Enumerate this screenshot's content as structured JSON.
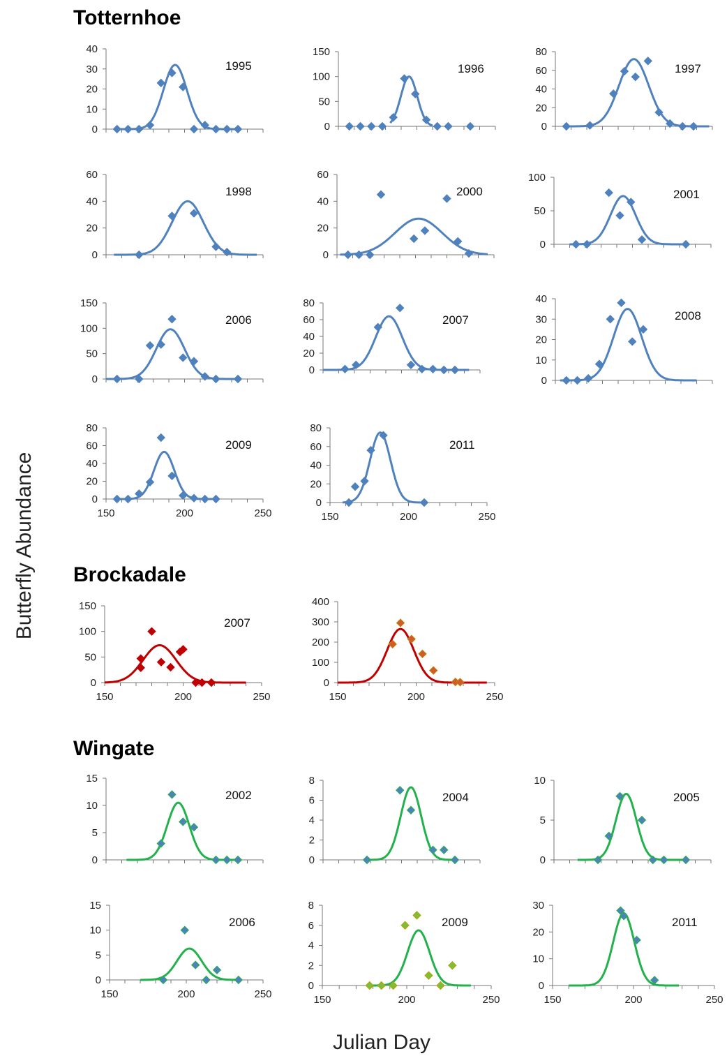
{
  "figure": {
    "ylabel": "Butterfly Abundance",
    "xlabel": "Julian Day",
    "sites": [
      "Totternhoe",
      "Brockadale",
      "Wingate"
    ]
  },
  "colors": {
    "Totternhoe": {
      "line": "#4f81bd",
      "marker": "#4f81bd",
      "edge": "#4f81bd"
    },
    "Brockadale2007": {
      "line": "#c00000",
      "marker": "#c00000",
      "edge": "#c00000"
    },
    "Brockadale": {
      "line": "#c00000",
      "marker": "#d45a2a",
      "edge": "#b8860b"
    },
    "Wingate": {
      "line": "#22b14c",
      "marker": "#4f81bd",
      "edge": "#22b14c"
    },
    "Wingate2009": {
      "line": "#22b14c",
      "marker": "#7bbf3a",
      "edge": "#b8a000"
    }
  },
  "chart_data": [
    {
      "type": "scatter",
      "site": "Totternhoe",
      "year": "1995",
      "xlim": [
        150,
        250
      ],
      "ylim": [
        0,
        40
      ],
      "yticks": [
        0,
        10,
        20,
        30,
        40
      ],
      "xticks": [],
      "xticklabels": [],
      "points": [
        [
          157,
          0
        ],
        [
          164,
          0
        ],
        [
          171,
          0
        ],
        [
          178,
          2
        ],
        [
          185,
          23
        ],
        [
          192,
          28
        ],
        [
          199,
          21
        ],
        [
          206,
          0
        ],
        [
          213,
          2
        ],
        [
          220,
          0
        ],
        [
          227,
          0
        ],
        [
          234,
          0
        ]
      ],
      "fit": {
        "amp": 32,
        "mu": 194,
        "sigma": 7.5,
        "x0": 157,
        "x1": 234
      }
    },
    {
      "type": "scatter",
      "site": "Totternhoe",
      "year": "1996",
      "xlim": [
        150,
        250
      ],
      "ylim": [
        0,
        150
      ],
      "yticks": [
        0,
        50,
        100,
        150
      ],
      "xticks": [],
      "xticklabels": [],
      "points": [
        [
          157,
          0
        ],
        [
          164,
          0
        ],
        [
          171,
          0
        ],
        [
          178,
          0
        ],
        [
          185,
          18
        ],
        [
          192,
          96
        ],
        [
          199,
          65
        ],
        [
          206,
          13
        ],
        [
          213,
          0
        ],
        [
          220,
          0
        ],
        [
          234,
          0
        ]
      ],
      "fit": {
        "amp": 100,
        "mu": 195,
        "sigma": 5.2,
        "x0": 183,
        "x1": 210
      }
    },
    {
      "type": "scatter",
      "site": "Totternhoe",
      "year": "1997",
      "xlim": [
        150,
        250
      ],
      "ylim": [
        0,
        80
      ],
      "yticks": [
        0,
        20,
        40,
        60,
        80
      ],
      "xticks": [],
      "xticklabels": [],
      "points": [
        [
          157,
          0
        ],
        [
          172,
          1
        ],
        [
          187,
          35
        ],
        [
          194,
          59
        ],
        [
          201,
          53
        ],
        [
          209,
          70
        ],
        [
          216,
          15
        ],
        [
          223,
          3
        ],
        [
          231,
          0
        ],
        [
          238,
          0
        ]
      ],
      "fit": {
        "amp": 72,
        "mu": 200,
        "sigma": 9.5,
        "x0": 155,
        "x1": 248
      }
    },
    {
      "type": "scatter",
      "site": "Totternhoe",
      "year": "1998",
      "xlim": [
        150,
        250
      ],
      "ylim": [
        0,
        60
      ],
      "yticks": [
        0,
        20,
        40,
        60
      ],
      "xticks": [],
      "xticklabels": [],
      "points": [
        [
          171,
          0
        ],
        [
          192,
          29
        ],
        [
          206,
          31
        ],
        [
          220,
          6
        ],
        [
          227,
          2
        ]
      ],
      "fit": {
        "amp": 40,
        "mu": 202,
        "sigma": 10,
        "x0": 155,
        "x1": 246
      }
    },
    {
      "type": "scatter",
      "site": "Totternhoe",
      "year": "2000",
      "xlim": [
        150,
        250
      ],
      "ylim": [
        0,
        60
      ],
      "yticks": [
        0,
        20,
        40,
        60
      ],
      "xticks": [],
      "xticklabels": [],
      "points": [
        [
          157,
          0
        ],
        [
          164,
          0
        ],
        [
          171,
          0
        ],
        [
          178,
          45
        ],
        [
          199,
          12
        ],
        [
          206,
          18
        ],
        [
          220,
          42
        ],
        [
          227,
          10
        ],
        [
          234,
          1
        ]
      ],
      "fit": {
        "amp": 27,
        "mu": 202,
        "sigma": 15,
        "x0": 152,
        "x1": 246
      }
    },
    {
      "type": "scatter",
      "site": "Totternhoe",
      "year": "2001",
      "xlim": [
        150,
        250
      ],
      "ylim": [
        0,
        100
      ],
      "yticks": [
        0,
        50,
        100
      ],
      "xticks": [],
      "xticklabels": [],
      "points": [
        [
          164,
          0
        ],
        [
          171,
          0
        ],
        [
          185,
          77
        ],
        [
          192,
          43
        ],
        [
          199,
          63
        ],
        [
          206,
          7
        ],
        [
          234,
          0
        ]
      ],
      "fit": {
        "amp": 72,
        "mu": 194,
        "sigma": 8,
        "x0": 160,
        "x1": 234
      }
    },
    {
      "type": "scatter",
      "site": "Totternhoe",
      "year": "2006",
      "xlim": [
        150,
        250
      ],
      "ylim": [
        0,
        150
      ],
      "yticks": [
        0,
        50,
        100,
        150
      ],
      "xticks": [],
      "xticklabels": [],
      "points": [
        [
          157,
          0
        ],
        [
          171,
          0
        ],
        [
          178,
          66
        ],
        [
          185,
          68
        ],
        [
          192,
          118
        ],
        [
          199,
          42
        ],
        [
          206,
          35
        ],
        [
          213,
          5
        ],
        [
          220,
          0
        ],
        [
          234,
          0
        ]
      ],
      "fit": {
        "amp": 98,
        "mu": 191,
        "sigma": 9,
        "x0": 150,
        "x1": 232
      }
    },
    {
      "type": "scatter",
      "site": "Totternhoe",
      "year": "2007",
      "xlim": [
        150,
        250
      ],
      "ylim": [
        0,
        80
      ],
      "yticks": [
        0,
        20,
        40,
        60,
        80
      ],
      "xticks": [],
      "xticklabels": [],
      "points": [
        [
          164,
          1
        ],
        [
          171,
          6
        ],
        [
          185,
          51
        ],
        [
          199,
          74
        ],
        [
          206,
          6
        ],
        [
          213,
          1
        ],
        [
          220,
          1
        ],
        [
          227,
          0
        ],
        [
          234,
          0
        ]
      ],
      "fit": {
        "amp": 64,
        "mu": 192,
        "sigma": 8.5,
        "x0": 150,
        "x1": 243
      }
    },
    {
      "type": "scatter",
      "site": "Totternhoe",
      "year": "2008",
      "xlim": [
        150,
        250
      ],
      "ylim": [
        0,
        40
      ],
      "yticks": [
        0,
        10,
        20,
        30,
        40
      ],
      "xticks": [],
      "xticklabels": [],
      "points": [
        [
          157,
          0
        ],
        [
          164,
          0
        ],
        [
          171,
          1
        ],
        [
          178,
          8
        ],
        [
          185,
          30
        ],
        [
          192,
          38
        ],
        [
          199,
          19
        ],
        [
          206,
          25
        ]
      ],
      "fit": {
        "amp": 35,
        "mu": 196,
        "sigma": 9,
        "x0": 153,
        "x1": 240
      }
    },
    {
      "type": "scatter",
      "site": "Totternhoe",
      "year": "2009",
      "xlim": [
        150,
        250
      ],
      "ylim": [
        0,
        80
      ],
      "yticks": [
        0,
        20,
        40,
        60,
        80
      ],
      "xticks": [
        150,
        200,
        250
      ],
      "xticklabels": [
        "150",
        "200",
        "250"
      ],
      "points": [
        [
          157,
          0
        ],
        [
          164,
          0
        ],
        [
          171,
          6
        ],
        [
          178,
          19
        ],
        [
          185,
          69
        ],
        [
          192,
          26
        ],
        [
          199,
          4
        ],
        [
          206,
          1
        ],
        [
          213,
          0
        ],
        [
          220,
          0
        ]
      ],
      "fit": {
        "amp": 53,
        "mu": 187,
        "sigma": 6.5,
        "x0": 155,
        "x1": 220
      }
    },
    {
      "type": "scatter",
      "site": "Totternhoe",
      "year": "2011",
      "xlim": [
        150,
        250
      ],
      "ylim": [
        0,
        80
      ],
      "yticks": [
        0,
        20,
        40,
        60,
        80
      ],
      "xticks": [
        150,
        200,
        250
      ],
      "xticklabels": [
        "150",
        "200",
        "250"
      ],
      "points": [
        [
          162,
          0
        ],
        [
          166,
          17
        ],
        [
          172,
          23
        ],
        [
          176,
          56
        ],
        [
          184,
          72
        ],
        [
          210,
          0
        ]
      ],
      "fit": {
        "amp": 75,
        "mu": 182,
        "sigma": 6.5,
        "x0": 158,
        "x1": 212
      }
    },
    {
      "type": "scatter",
      "site": "Brockadale",
      "year": "2007",
      "xlim": [
        150,
        250
      ],
      "ylim": [
        0,
        150
      ],
      "yticks": [
        0,
        50,
        100,
        150
      ],
      "xticks": [
        150,
        200,
        250
      ],
      "xticklabels": [
        "150",
        "200",
        "250"
      ],
      "points": [
        [
          173,
          47
        ],
        [
          173,
          29
        ],
        [
          180,
          100
        ],
        [
          186,
          40
        ],
        [
          192,
          30
        ],
        [
          198,
          60
        ],
        [
          200,
          65
        ],
        [
          208,
          0
        ],
        [
          212,
          0
        ],
        [
          218,
          0
        ]
      ],
      "fit": {
        "amp": 73,
        "mu": 185,
        "sigma": 10.5,
        "x0": 150,
        "x1": 240
      }
    },
    {
      "type": "scatter",
      "site": "Brockadale",
      "year": "",
      "xlim": [
        150,
        250
      ],
      "ylim": [
        0,
        400
      ],
      "yticks": [
        0,
        100,
        200,
        300,
        400
      ],
      "xticks": [
        150,
        200,
        250
      ],
      "xticklabels": [
        "150",
        "200",
        "250"
      ],
      "points": [
        [
          185,
          190
        ],
        [
          190,
          295
        ],
        [
          197,
          215
        ],
        [
          204,
          142
        ],
        [
          211,
          60
        ],
        [
          225,
          3
        ],
        [
          228,
          2
        ]
      ],
      "fit": {
        "amp": 265,
        "mu": 190,
        "sigma": 8.5,
        "x0": 150,
        "x1": 245
      }
    },
    {
      "type": "scatter",
      "site": "Wingate",
      "year": "2002",
      "xlim": [
        150,
        250
      ],
      "ylim": [
        0,
        15
      ],
      "yticks": [
        0,
        5,
        10,
        15
      ],
      "xticks": [],
      "xticklabels": [],
      "points": [
        [
          185,
          3
        ],
        [
          192,
          12
        ],
        [
          199,
          7
        ],
        [
          206,
          6
        ],
        [
          220,
          0
        ],
        [
          227,
          0
        ],
        [
          234,
          0
        ]
      ],
      "fit": {
        "amp": 10.5,
        "mu": 196,
        "sigma": 7,
        "x0": 163,
        "x1": 233
      }
    },
    {
      "type": "scatter",
      "site": "Wingate",
      "year": "2004",
      "xlim": [
        150,
        250
      ],
      "ylim": [
        0,
        8
      ],
      "yticks": [
        0,
        2,
        4,
        6,
        8
      ],
      "xticks": [],
      "xticklabels": [],
      "points": [
        [
          178,
          0
        ],
        [
          199,
          7
        ],
        [
          206,
          5
        ],
        [
          220,
          1
        ],
        [
          227,
          1
        ],
        [
          234,
          0
        ]
      ],
      "fit": {
        "amp": 7.3,
        "mu": 206,
        "sigma": 6.5,
        "x0": 178,
        "x1": 236
      }
    },
    {
      "type": "scatter",
      "site": "Wingate",
      "year": "2005",
      "xlim": [
        150,
        250
      ],
      "ylim": [
        0,
        10
      ],
      "yticks": [
        0,
        5,
        10
      ],
      "xticks": [],
      "xticklabels": [],
      "points": [
        [
          178,
          0
        ],
        [
          185,
          3
        ],
        [
          192,
          8
        ],
        [
          206,
          5
        ],
        [
          213,
          0
        ],
        [
          220,
          0
        ],
        [
          234,
          0
        ]
      ],
      "fit": {
        "amp": 8.3,
        "mu": 196,
        "sigma": 6.5,
        "x0": 165,
        "x1": 232
      }
    },
    {
      "type": "scatter",
      "site": "Wingate",
      "year": "2006",
      "xlim": [
        150,
        250
      ],
      "ylim": [
        0,
        15
      ],
      "yticks": [
        0,
        5,
        10,
        15
      ],
      "xticks": [
        150,
        200,
        250
      ],
      "xticklabels": [
        "150",
        "200",
        "250"
      ],
      "points": [
        [
          185,
          0
        ],
        [
          199,
          10
        ],
        [
          206,
          3
        ],
        [
          213,
          0
        ],
        [
          220,
          2
        ],
        [
          234,
          0
        ]
      ],
      "fit": {
        "amp": 6.3,
        "mu": 202,
        "sigma": 8,
        "x0": 170,
        "x1": 236
      }
    },
    {
      "type": "scatter",
      "site": "Wingate",
      "year": "2009",
      "xlim": [
        150,
        250
      ],
      "ylim": [
        0,
        8
      ],
      "yticks": [
        0,
        2,
        4,
        6,
        8
      ],
      "xticks": [
        150,
        200,
        250
      ],
      "xticklabels": [
        "150",
        "200",
        "250"
      ],
      "points": [
        [
          178,
          0
        ],
        [
          185,
          0
        ],
        [
          192,
          0
        ],
        [
          199,
          6
        ],
        [
          206,
          7
        ],
        [
          213,
          1
        ],
        [
          220,
          0
        ],
        [
          227,
          2
        ]
      ],
      "fit": {
        "amp": 5.5,
        "mu": 207,
        "sigma": 6.5,
        "x0": 178,
        "x1": 238
      }
    },
    {
      "type": "scatter",
      "site": "Wingate",
      "year": "2011",
      "xlim": [
        150,
        250
      ],
      "ylim": [
        0,
        30
      ],
      "yticks": [
        0,
        10,
        20,
        30
      ],
      "xticks": [
        150,
        200,
        250
      ],
      "xticklabels": [
        "150",
        "200",
        "250"
      ],
      "points": [
        [
          192,
          28
        ],
        [
          194,
          26
        ],
        [
          202,
          17
        ],
        [
          213,
          2
        ]
      ],
      "fit": {
        "amp": 27,
        "mu": 194,
        "sigma": 6.5,
        "x0": 160,
        "x1": 228
      }
    }
  ]
}
